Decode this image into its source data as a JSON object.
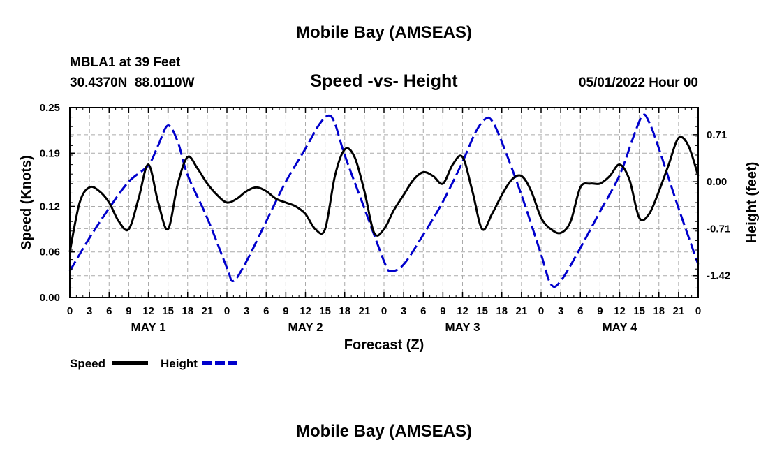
{
  "chart_data": {
    "type": "line",
    "title": "Mobile Bay (AMSEAS)",
    "subtitle": "Speed -vs- Height",
    "station": "MBLA1 at 39 Feet",
    "location": "30.4370N  88.0110W",
    "run_time": "05/01/2022 Hour 00",
    "xlabel": "Forecast (Z)",
    "ylabel_left": "Speed (Knots)",
    "ylabel_right": "Height (feet)",
    "xlim": [
      0,
      96
    ],
    "ylim_left": [
      0,
      0.25
    ],
    "ylim_right": [
      -1.75,
      1.12
    ],
    "x_ticks": [
      0,
      3,
      6,
      9,
      12,
      15,
      18,
      21,
      24,
      27,
      30,
      33,
      36,
      39,
      42,
      45,
      48,
      51,
      54,
      57,
      60,
      63,
      66,
      69,
      72,
      75,
      78,
      81,
      84,
      87,
      90,
      93,
      96
    ],
    "x_tick_labels": [
      "0",
      "3",
      "6",
      "9",
      "12",
      "15",
      "18",
      "21",
      "0",
      "3",
      "6",
      "9",
      "12",
      "15",
      "18",
      "21",
      "0",
      "3",
      "6",
      "9",
      "12",
      "15",
      "18",
      "21",
      "0",
      "3",
      "6",
      "9",
      "12",
      "15",
      "18",
      "21",
      "0"
    ],
    "day_labels": [
      {
        "x": 12,
        "text": "MAY 1"
      },
      {
        "x": 36,
        "text": "MAY 2"
      },
      {
        "x": 60,
        "text": "MAY 3"
      },
      {
        "x": 84,
        "text": "MAY 4"
      }
    ],
    "y_left_ticks": [
      0.0,
      0.06,
      0.12,
      0.19,
      0.25
    ],
    "y_left_tick_labels": [
      "0.00",
      "0.06",
      "0.12",
      "0.19",
      "0.25"
    ],
    "y_right_ticks": [
      0.71,
      0.0,
      -0.71,
      -1.42
    ],
    "y_right_tick_labels": [
      "0.71",
      "0.00",
      "-0.71",
      "-1.42"
    ],
    "grid": true,
    "legend": {
      "placement": "bottom-left",
      "entries": [
        "Speed",
        "Height"
      ]
    },
    "series": [
      {
        "name": "Speed",
        "axis": "left",
        "color": "#000000",
        "style": "solid",
        "x": [
          0,
          1.5,
          3,
          4.5,
          6,
          7.5,
          9,
          10.5,
          12,
          13.5,
          15,
          16.5,
          18,
          19.5,
          21,
          22.5,
          24,
          25.5,
          27,
          28.5,
          30,
          31.5,
          33,
          34.5,
          36,
          37.5,
          39,
          40.5,
          42,
          43.5,
          45,
          46.5,
          48,
          49.5,
          51,
          52.5,
          54,
          55.5,
          57,
          58.5,
          60,
          61.5,
          63,
          64.5,
          66,
          67.5,
          69,
          70.5,
          72,
          73.5,
          75,
          76.5,
          78,
          79.5,
          81,
          82.5,
          84,
          85.5,
          87,
          88.5,
          90,
          91.5,
          93,
          94.5,
          96
        ],
        "values": [
          0.06,
          0.125,
          0.145,
          0.14,
          0.125,
          0.1,
          0.09,
          0.13,
          0.175,
          0.125,
          0.09,
          0.15,
          0.185,
          0.17,
          0.15,
          0.135,
          0.125,
          0.13,
          0.14,
          0.145,
          0.14,
          0.13,
          0.125,
          0.12,
          0.11,
          0.09,
          0.09,
          0.16,
          0.195,
          0.185,
          0.14,
          0.085,
          0.09,
          0.115,
          0.135,
          0.155,
          0.165,
          0.16,
          0.15,
          0.175,
          0.185,
          0.14,
          0.09,
          0.11,
          0.135,
          0.155,
          0.16,
          0.14,
          0.105,
          0.09,
          0.085,
          0.1,
          0.145,
          0.15,
          0.15,
          0.16,
          0.175,
          0.155,
          0.105,
          0.11,
          0.14,
          0.175,
          0.21,
          0.2,
          0.16
        ]
      },
      {
        "name": "Height",
        "axis": "right",
        "color": "#0000cc",
        "style": "dashed",
        "x": [
          0,
          3,
          6,
          9,
          12,
          13.5,
          15,
          16.5,
          18,
          21,
          24,
          25,
          27,
          30,
          33,
          36,
          38,
          39.5,
          40.5,
          42,
          45,
          48,
          49,
          51,
          54,
          57,
          60,
          62,
          63.5,
          64.5,
          66,
          69,
          72,
          73.5,
          75,
          78,
          81,
          84,
          86,
          87.5,
          88.5,
          90,
          93,
          96
        ],
        "values": [
          -1.35,
          -0.85,
          -0.4,
          0.0,
          0.25,
          0.55,
          0.85,
          0.6,
          0.1,
          -0.55,
          -1.3,
          -1.5,
          -1.2,
          -0.6,
          0.0,
          0.5,
          0.85,
          1.0,
          0.88,
          0.4,
          -0.4,
          -1.2,
          -1.35,
          -1.25,
          -0.8,
          -0.3,
          0.3,
          0.75,
          0.95,
          0.92,
          0.6,
          -0.2,
          -1.1,
          -1.55,
          -1.5,
          -1.0,
          -0.45,
          0.1,
          0.65,
          1.0,
          0.9,
          0.5,
          -0.4,
          -1.25
        ]
      }
    ]
  },
  "footer_title": "Mobile Bay (AMSEAS)"
}
